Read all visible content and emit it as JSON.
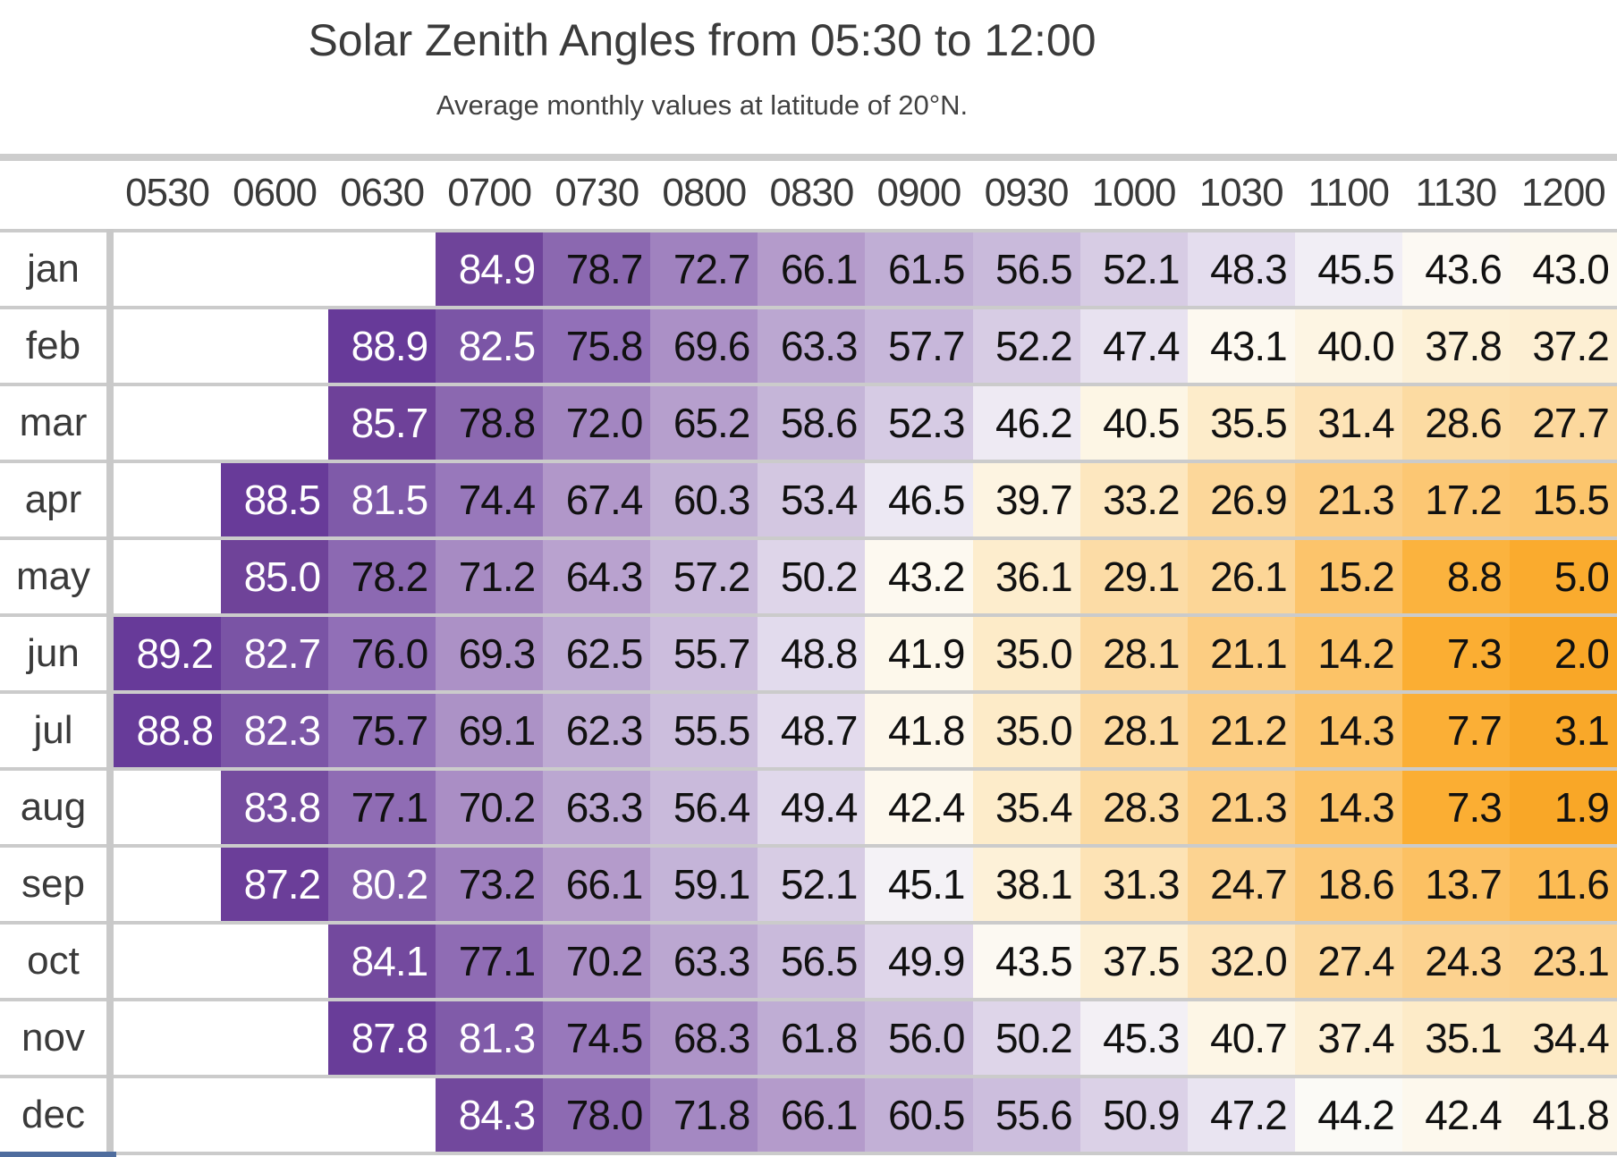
{
  "title": "Solar Zenith Angles from 05:30 to 12:00",
  "subtitle": "Average monthly values at latitude of 20°N.",
  "chart_data": {
    "type": "heatmap",
    "title": "Solar Zenith Angles from 05:30 to 12:00",
    "subtitle": "Average monthly values at latitude of 20°N.",
    "x_labels": [
      "0530",
      "0600",
      "0630",
      "0700",
      "0730",
      "0800",
      "0830",
      "0900",
      "0930",
      "1000",
      "1030",
      "1100",
      "1130",
      "1200"
    ],
    "y_labels": [
      "jan",
      "feb",
      "mar",
      "apr",
      "may",
      "jun",
      "jul",
      "aug",
      "sep",
      "oct",
      "nov",
      "dec"
    ],
    "values": [
      [
        null,
        null,
        null,
        84.9,
        78.7,
        72.7,
        66.1,
        61.5,
        56.5,
        52.1,
        48.3,
        45.5,
        43.6,
        43.0
      ],
      [
        null,
        null,
        88.9,
        82.5,
        75.8,
        69.6,
        63.3,
        57.7,
        52.2,
        47.4,
        43.1,
        40.0,
        37.8,
        37.2
      ],
      [
        null,
        null,
        85.7,
        78.8,
        72.0,
        65.2,
        58.6,
        52.3,
        46.2,
        40.5,
        35.5,
        31.4,
        28.6,
        27.7
      ],
      [
        null,
        88.5,
        81.5,
        74.4,
        67.4,
        60.3,
        53.4,
        46.5,
        39.7,
        33.2,
        26.9,
        21.3,
        17.2,
        15.5
      ],
      [
        null,
        85.0,
        78.2,
        71.2,
        64.3,
        57.2,
        50.2,
        43.2,
        36.1,
        29.1,
        26.1,
        15.2,
        8.8,
        5.0
      ],
      [
        89.2,
        82.7,
        76.0,
        69.3,
        62.5,
        55.7,
        48.8,
        41.9,
        35.0,
        28.1,
        21.1,
        14.2,
        7.3,
        2.0
      ],
      [
        88.8,
        82.3,
        75.7,
        69.1,
        62.3,
        55.5,
        48.7,
        41.8,
        35.0,
        28.1,
        21.2,
        14.3,
        7.7,
        3.1
      ],
      [
        null,
        83.8,
        77.1,
        70.2,
        63.3,
        56.4,
        49.4,
        42.4,
        35.4,
        28.3,
        21.3,
        14.3,
        7.3,
        1.9
      ],
      [
        null,
        87.2,
        80.2,
        73.2,
        66.1,
        59.1,
        52.1,
        45.1,
        38.1,
        31.3,
        24.7,
        18.6,
        13.7,
        11.6
      ],
      [
        null,
        null,
        84.1,
        77.1,
        70.2,
        63.3,
        56.5,
        49.9,
        43.5,
        37.5,
        32.0,
        27.4,
        24.3,
        23.1
      ],
      [
        null,
        null,
        87.8,
        81.3,
        74.5,
        68.3,
        61.8,
        56.0,
        50.2,
        45.3,
        40.7,
        37.4,
        35.1,
        34.4
      ],
      [
        null,
        null,
        null,
        84.3,
        78.0,
        71.8,
        66.1,
        60.5,
        55.6,
        50.9,
        47.2,
        44.2,
        42.4,
        41.8
      ]
    ],
    "value_format_decimals": 1,
    "value_range": [
      0,
      90
    ],
    "legend": "none",
    "grid": "horizontal-lines",
    "colormap": "purple-white-orange-diverging",
    "color_anchors": [
      [
        0.0,
        "#f9a521"
      ],
      [
        2.0,
        "#f9a727"
      ],
      [
        7.3,
        "#fbae33"
      ],
      [
        14.2,
        "#fcc367"
      ],
      [
        21.1,
        "#fccd82"
      ],
      [
        28.1,
        "#fcd99f"
      ],
      [
        31.4,
        "#fde3b6"
      ],
      [
        35.5,
        "#fdecca"
      ],
      [
        40.0,
        "#fdf5e3"
      ],
      [
        43.0,
        "#fdf9ef"
      ],
      [
        44.3,
        "#fbfaf7"
      ],
      [
        45.5,
        "#f1eef5"
      ],
      [
        48.3,
        "#e4ddee"
      ],
      [
        52.1,
        "#d7cce4"
      ],
      [
        56.5,
        "#c9badb"
      ],
      [
        61.5,
        "#c0aed5"
      ],
      [
        66.1,
        "#b49bcb"
      ],
      [
        71.2,
        "#a78bc3"
      ],
      [
        76.0,
        "#916fb7"
      ],
      [
        78.8,
        "#8b68b0"
      ],
      [
        82.5,
        "#7b55a6"
      ],
      [
        85.0,
        "#6f4399"
      ],
      [
        90.0,
        "#653899"
      ]
    ],
    "white_text_min": 79.5,
    "style": {
      "empty_cell_color": "#ffffff",
      "cell_text_dark": "#111111",
      "cell_text_light": "#ffffff",
      "axis_label_color": "#3a3a3a",
      "gridline_color": "#cbcbcb",
      "spine_color": "#c9c9c9",
      "top_divider_color": "#cdcdcd",
      "bottom_accent_color": "#4f6d9e",
      "background_color": "#ffffff"
    }
  }
}
